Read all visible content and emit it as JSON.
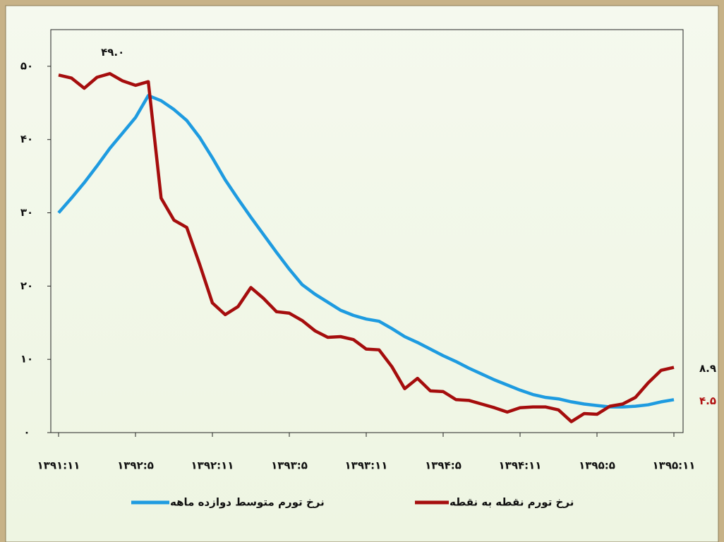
{
  "chart_data": {
    "type": "line",
    "categories": [
      "۱۳۹۱:۱۱",
      null,
      null,
      null,
      null,
      null,
      "۱۳۹۲:۵",
      null,
      null,
      null,
      null,
      null,
      "۱۳۹۲:۱۱",
      null,
      null,
      null,
      null,
      null,
      "۱۳۹۳:۵",
      null,
      null,
      null,
      null,
      null,
      "۱۳۹۳:۱۱",
      null,
      null,
      null,
      null,
      null,
      "۱۳۹۴:۵",
      null,
      null,
      null,
      null,
      null,
      "۱۳۹۴:۱۱",
      null,
      null,
      null,
      null,
      null,
      "۱۳۹۵:۵",
      null,
      null,
      null,
      null,
      null,
      "۱۳۹۵:۱۱"
    ],
    "series": [
      {
        "name": "نرخ تورم متوسط دوازده ماهه",
        "color": "#1e9be0",
        "label_color": "#b01010",
        "values": [
          30.0,
          32.0,
          34.1,
          36.4,
          38.8,
          40.9,
          43.0,
          46.0,
          45.3,
          44.1,
          42.6,
          40.3,
          37.5,
          34.5,
          31.9,
          29.4,
          27.0,
          24.6,
          22.3,
          20.2,
          18.9,
          17.8,
          16.7,
          16.0,
          15.5,
          15.2,
          14.2,
          13.1,
          12.3,
          11.4,
          10.5,
          9.7,
          8.8,
          8.0,
          7.2,
          6.5,
          5.8,
          5.2,
          4.8,
          4.6,
          4.2,
          3.9,
          3.7,
          3.5,
          3.5,
          3.6,
          3.8,
          4.2,
          4.5
        ],
        "value_labels": [
          null,
          null,
          null,
          null,
          null,
          null,
          null,
          null,
          null,
          null,
          null,
          null,
          null,
          null,
          null,
          null,
          null,
          null,
          null,
          null,
          null,
          null,
          null,
          null,
          null,
          null,
          null,
          null,
          null,
          null,
          null,
          null,
          null,
          null,
          null,
          null,
          null,
          null,
          null,
          null,
          null,
          null,
          null,
          null,
          null,
          null,
          null,
          null,
          "۴.۵"
        ]
      },
      {
        "name": "نرخ تورم نقطه به نقطه",
        "color": "#a50d0d",
        "label_color": "#111111",
        "values": [
          48.8,
          48.4,
          47.0,
          48.5,
          49.0,
          48.0,
          47.4,
          47.9,
          32.0,
          29.0,
          28.0,
          23.0,
          17.7,
          16.1,
          17.2,
          19.8,
          18.3,
          16.5,
          16.3,
          15.3,
          13.9,
          13.0,
          13.1,
          12.7,
          11.4,
          11.3,
          9.0,
          6.0,
          7.4,
          5.7,
          5.6,
          4.5,
          4.4,
          3.9,
          3.4,
          2.8,
          3.4,
          3.5,
          3.5,
          3.1,
          1.5,
          2.6,
          2.5,
          3.6,
          3.9,
          4.8,
          6.8,
          8.5,
          8.9
        ],
        "value_labels": [
          null,
          null,
          null,
          null,
          "۴۹.۰",
          null,
          null,
          null,
          null,
          null,
          null,
          null,
          null,
          null,
          null,
          null,
          null,
          null,
          null,
          null,
          null,
          null,
          null,
          null,
          null,
          null,
          null,
          null,
          null,
          null,
          null,
          null,
          null,
          null,
          null,
          null,
          null,
          null,
          null,
          null,
          null,
          null,
          null,
          null,
          null,
          null,
          null,
          null,
          "۸.۹"
        ]
      }
    ],
    "ylim": [
      0,
      55
    ],
    "yticks": [
      {
        "value": 0,
        "label": "۰"
      },
      {
        "value": 10,
        "label": "۱۰"
      },
      {
        "value": 20,
        "label": "۲۰"
      },
      {
        "value": 30,
        "label": "۳۰"
      },
      {
        "value": 40,
        "label": "۴۰"
      },
      {
        "value": 50,
        "label": "۵۰"
      }
    ],
    "grid": false
  }
}
